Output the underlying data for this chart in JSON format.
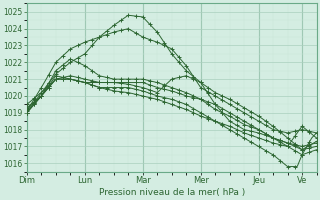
{
  "xlabel": "Pression niveau de la mer( hPa )",
  "ylim": [
    1015.5,
    1025.5
  ],
  "xlim": [
    0,
    120
  ],
  "yticks": [
    1016,
    1017,
    1018,
    1019,
    1020,
    1021,
    1022,
    1023,
    1024,
    1025
  ],
  "day_ticks": [
    0,
    24,
    48,
    72,
    96,
    114
  ],
  "day_labels": [
    "Dim",
    "Lun",
    "Mar",
    "Mer",
    "Jeu",
    "Ve"
  ],
  "bg_color": "#d4ede2",
  "grid_major_color": "#aacfbe",
  "grid_minor_color": "#c8e4d8",
  "line_color": "#2d6632",
  "figsize": [
    3.2,
    2.0
  ],
  "dpi": 100,
  "series": [
    {
      "kp": [
        [
          0,
          1019.0
        ],
        [
          6,
          1020.2
        ],
        [
          12,
          1021.3
        ],
        [
          18,
          1022.0
        ],
        [
          24,
          1022.5
        ],
        [
          30,
          1023.5
        ],
        [
          36,
          1024.2
        ],
        [
          42,
          1024.8
        ],
        [
          48,
          1024.7
        ],
        [
          54,
          1023.8
        ],
        [
          60,
          1022.5
        ],
        [
          66,
          1021.5
        ],
        [
          72,
          1020.8
        ],
        [
          78,
          1020.2
        ],
        [
          84,
          1019.8
        ],
        [
          90,
          1019.3
        ],
        [
          96,
          1018.8
        ],
        [
          102,
          1018.2
        ],
        [
          108,
          1017.5
        ],
        [
          114,
          1016.8
        ],
        [
          120,
          1017.0
        ]
      ]
    },
    {
      "kp": [
        [
          0,
          1019.1
        ],
        [
          6,
          1020.5
        ],
        [
          12,
          1022.0
        ],
        [
          18,
          1022.8
        ],
        [
          24,
          1023.2
        ],
        [
          30,
          1023.5
        ],
        [
          36,
          1023.8
        ],
        [
          42,
          1024.0
        ],
        [
          48,
          1023.5
        ],
        [
          54,
          1023.2
        ],
        [
          60,
          1022.8
        ],
        [
          66,
          1021.8
        ],
        [
          72,
          1020.5
        ],
        [
          78,
          1020.0
        ],
        [
          84,
          1019.5
        ],
        [
          90,
          1019.0
        ],
        [
          96,
          1018.5
        ],
        [
          102,
          1018.0
        ],
        [
          108,
          1017.8
        ],
        [
          114,
          1018.0
        ],
        [
          120,
          1017.8
        ]
      ]
    },
    {
      "kp": [
        [
          0,
          1019.0
        ],
        [
          6,
          1020.0
        ],
        [
          12,
          1021.5
        ],
        [
          18,
          1022.2
        ],
        [
          24,
          1021.8
        ],
        [
          30,
          1021.2
        ],
        [
          36,
          1021.0
        ],
        [
          42,
          1021.0
        ],
        [
          48,
          1021.0
        ],
        [
          54,
          1020.8
        ],
        [
          60,
          1020.5
        ],
        [
          66,
          1020.2
        ],
        [
          72,
          1019.8
        ],
        [
          78,
          1019.5
        ],
        [
          84,
          1019.0
        ],
        [
          90,
          1018.5
        ],
        [
          96,
          1018.0
        ],
        [
          102,
          1017.5
        ],
        [
          108,
          1017.0
        ],
        [
          114,
          1016.5
        ],
        [
          120,
          1016.8
        ]
      ]
    },
    {
      "kp": [
        [
          0,
          1019.5
        ],
        [
          6,
          1020.2
        ],
        [
          12,
          1021.0
        ],
        [
          18,
          1021.2
        ],
        [
          24,
          1021.0
        ],
        [
          30,
          1020.8
        ],
        [
          36,
          1020.8
        ],
        [
          42,
          1020.8
        ],
        [
          48,
          1020.8
        ],
        [
          54,
          1020.5
        ],
        [
          60,
          1020.3
        ],
        [
          66,
          1020.0
        ],
        [
          72,
          1019.8
        ],
        [
          78,
          1019.2
        ],
        [
          84,
          1018.8
        ],
        [
          90,
          1018.3
        ],
        [
          96,
          1018.0
        ],
        [
          102,
          1017.5
        ],
        [
          108,
          1017.2
        ],
        [
          114,
          1017.0
        ],
        [
          120,
          1017.2
        ]
      ]
    },
    {
      "kp": [
        [
          0,
          1019.2
        ],
        [
          6,
          1020.0
        ],
        [
          12,
          1021.2
        ],
        [
          18,
          1021.0
        ],
        [
          24,
          1020.8
        ],
        [
          30,
          1020.8
        ],
        [
          36,
          1020.8
        ],
        [
          42,
          1020.7
        ],
        [
          48,
          1020.5
        ],
        [
          54,
          1020.2
        ],
        [
          60,
          1021.0
        ],
        [
          66,
          1021.2
        ],
        [
          72,
          1020.8
        ],
        [
          78,
          1019.5
        ],
        [
          84,
          1018.5
        ],
        [
          90,
          1018.0
        ],
        [
          96,
          1017.8
        ],
        [
          102,
          1017.5
        ],
        [
          108,
          1017.2
        ],
        [
          114,
          1016.8
        ],
        [
          120,
          1017.3
        ]
      ]
    },
    {
      "kp": [
        [
          0,
          1019.0
        ],
        [
          6,
          1020.0
        ],
        [
          12,
          1021.0
        ],
        [
          18,
          1021.0
        ],
        [
          24,
          1020.8
        ],
        [
          30,
          1020.5
        ],
        [
          36,
          1020.5
        ],
        [
          42,
          1020.5
        ],
        [
          48,
          1020.3
        ],
        [
          54,
          1020.0
        ],
        [
          60,
          1019.8
        ],
        [
          66,
          1019.5
        ],
        [
          72,
          1019.0
        ],
        [
          78,
          1018.5
        ],
        [
          84,
          1018.0
        ],
        [
          90,
          1017.5
        ],
        [
          96,
          1017.0
        ],
        [
          102,
          1016.5
        ],
        [
          108,
          1015.8
        ],
        [
          112,
          1015.8
        ],
        [
          114,
          1016.5
        ],
        [
          118,
          1017.5
        ],
        [
          120,
          1017.8
        ]
      ]
    },
    {
      "kp": [
        [
          0,
          1019.3
        ],
        [
          6,
          1020.0
        ],
        [
          12,
          1021.0
        ],
        [
          18,
          1021.0
        ],
        [
          24,
          1020.8
        ],
        [
          30,
          1020.5
        ],
        [
          36,
          1020.3
        ],
        [
          42,
          1020.2
        ],
        [
          48,
          1020.0
        ],
        [
          54,
          1019.8
        ],
        [
          60,
          1019.5
        ],
        [
          66,
          1019.2
        ],
        [
          72,
          1018.8
        ],
        [
          78,
          1018.5
        ],
        [
          84,
          1018.2
        ],
        [
          90,
          1017.8
        ],
        [
          96,
          1017.5
        ],
        [
          102,
          1017.2
        ],
        [
          108,
          1017.0
        ],
        [
          114,
          1018.2
        ],
        [
          120,
          1017.5
        ]
      ]
    }
  ]
}
